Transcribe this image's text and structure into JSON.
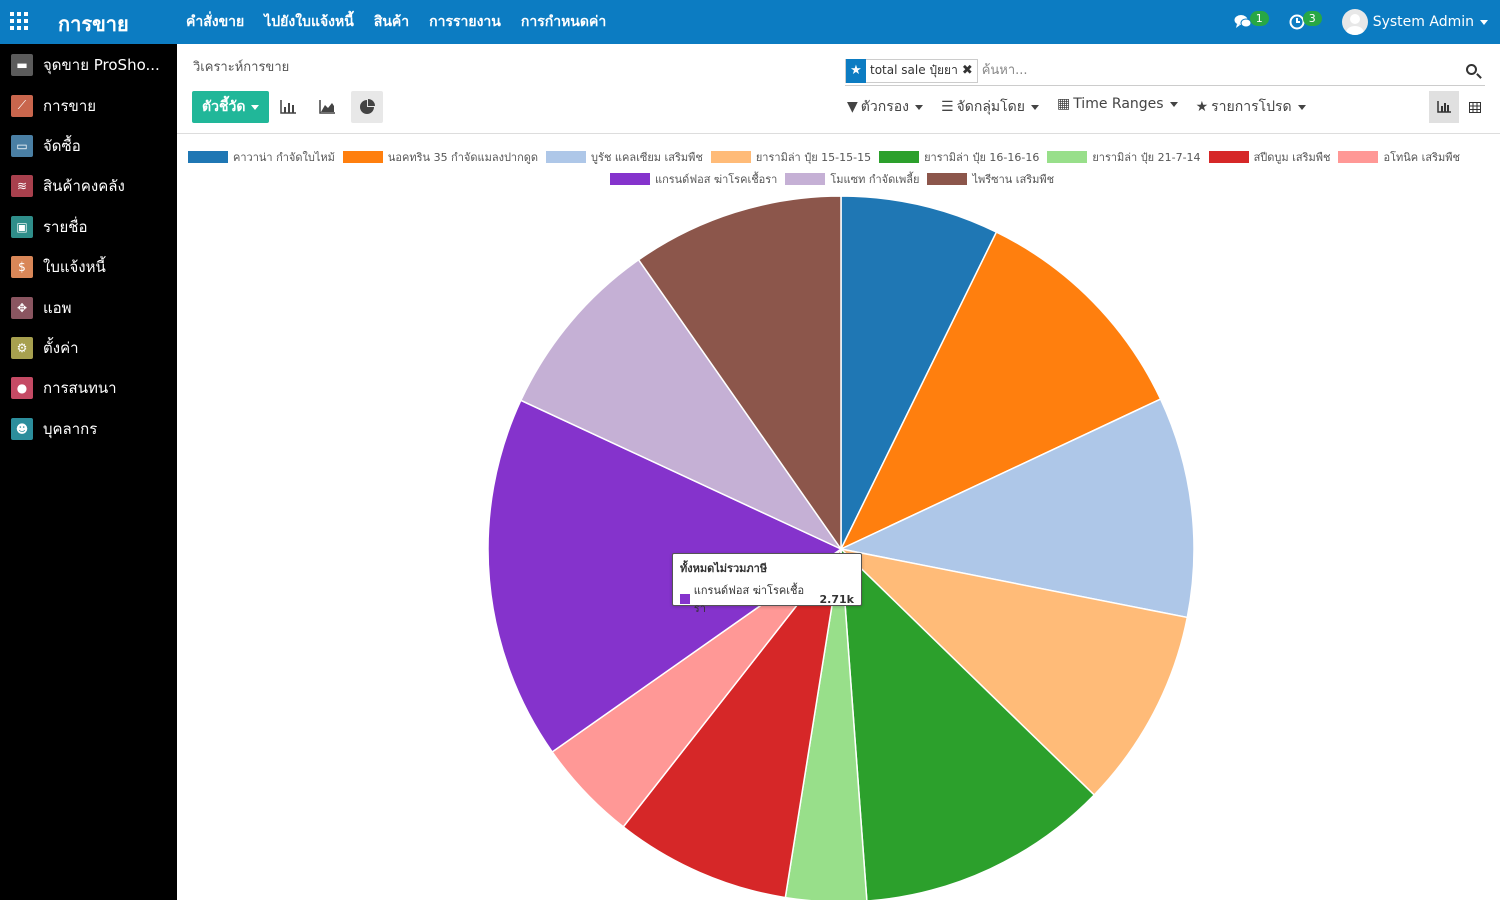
{
  "topbar": {
    "app_title": "การขาย",
    "menu": [
      "คำสั่งขาย",
      "ไปยังใบแจ้งหนี้",
      "สินค้า",
      "การรายงาน",
      "การกำหนดค่า"
    ],
    "messages_count": "1",
    "activities_count": "3",
    "user_name": "System Admin",
    "color": "#0c7cc2"
  },
  "sidebar": {
    "items": [
      {
        "label": "จุดขาย ProSho...",
        "icon": "pos-icon",
        "color": "#5b5b5b"
      },
      {
        "label": "การขาย",
        "icon": "sales-chart-icon",
        "color": "#c9664d"
      },
      {
        "label": "จัดซื้อ",
        "icon": "purchase-icon",
        "color": "#4a7fa4"
      },
      {
        "label": "สินค้าคงคลัง",
        "icon": "inventory-icon",
        "color": "#a8404d"
      },
      {
        "label": "รายชื่อ",
        "icon": "contacts-icon",
        "color": "#2f8e8a"
      },
      {
        "label": "ใบแจ้งหนี้",
        "icon": "invoice-icon",
        "color": "#d98758"
      },
      {
        "label": "แอพ",
        "icon": "apps-icon",
        "color": "#8a5560"
      },
      {
        "label": "ตั้งค่า",
        "icon": "settings-gear-icon",
        "color": "#a7a04f"
      },
      {
        "label": "การสนทนา",
        "icon": "discuss-icon",
        "color": "#c54a64"
      },
      {
        "label": "บุคลากร",
        "icon": "employees-icon",
        "color": "#2c8e9c"
      }
    ]
  },
  "control_panel": {
    "breadcrumb": "วิเคราะห์การขาย",
    "facet_value": "total sale ปุ๋ยยา",
    "search_placeholder": "ค้นหา...",
    "measures_label": "ตัวชี้วัด",
    "filters_label": "ตัวกรอง",
    "group_by_label": "จัดกลุ่มโดย",
    "time_ranges_label": "Time Ranges",
    "favorites_label": "รายการโปรด",
    "measures_color": "#21b799"
  },
  "chart_data": {
    "type": "pie",
    "measure": "ทั้งหมดไม่รวมภาษี",
    "categories": [
      "คาวาน่า กำจัดใบไหม้",
      "นอคทริน 35 กำจัดแมลงปากดูด",
      "บูรัช แคลเซียม เสริมพืช",
      "ยารามิล่า ปุ๋ย 15-15-15",
      "ยารามิล่า ปุ๋ย 16-16-16",
      "ยารามิล่า ปุ๋ย 21-7-14",
      "สปีดบูม เสริมพืช",
      "อโทนิค เสริมพืช",
      "แกรนด์ฟอส ฆ่าโรคเชื้อรา",
      "โมแซท กำจัดเพลี้ย",
      "ไพรีซาน เสริมพืช"
    ],
    "values": [
      1.18,
      1.75,
      1.64,
      1.49,
      1.88,
      0.6,
      1.31,
      0.76,
      2.71,
      1.36,
      1.58
    ],
    "colors": [
      "#1f77b4",
      "#ff7f0e",
      "#aec7e8",
      "#ffbb78",
      "#2ca02c",
      "#98df8a",
      "#d62728",
      "#ff9896",
      "#8533cc",
      "#c5b0d5",
      "#8c564b"
    ],
    "legend_position": "top",
    "tooltip": {
      "title": "ทั้งหมดไม่รวมภาษี",
      "label": "แกรนด์ฟอส ฆ่าโรคเชื้อรา",
      "value": "2.71k"
    }
  }
}
